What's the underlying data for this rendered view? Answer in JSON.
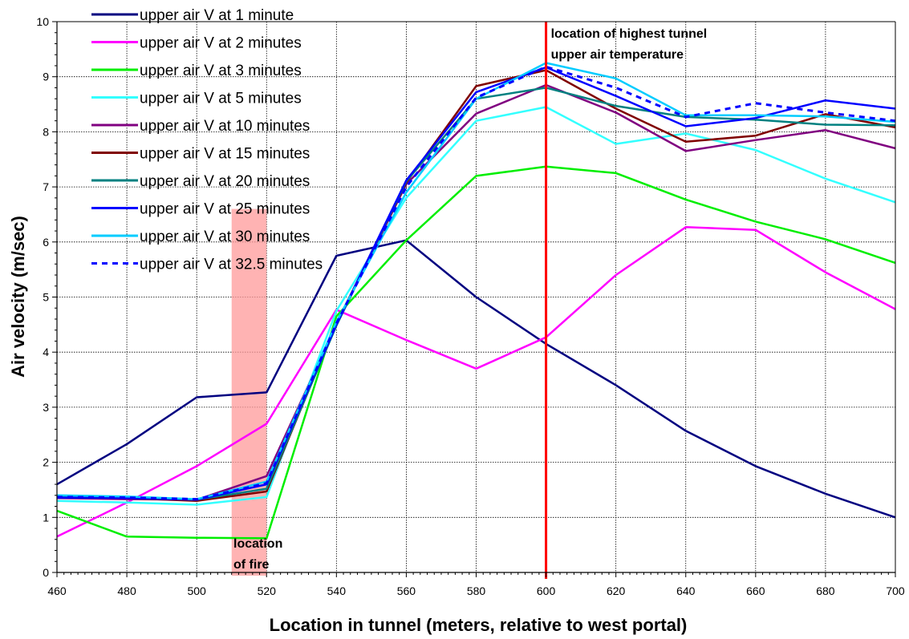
{
  "chart_data": {
    "type": "line",
    "xlabel": "Location in tunnel (meters, relative to west portal)",
    "ylabel": "Air velocity (m/sec)",
    "xlim": [
      460,
      700
    ],
    "ylim": [
      0,
      10
    ],
    "x_ticks": [
      460,
      480,
      500,
      520,
      540,
      560,
      580,
      600,
      620,
      640,
      660,
      680,
      700
    ],
    "y_ticks": [
      0,
      1,
      2,
      3,
      4,
      5,
      6,
      7,
      8,
      9,
      10
    ],
    "grid": true,
    "legend_position": "top-left",
    "x": [
      460,
      480,
      500,
      520,
      540,
      560,
      580,
      600,
      620,
      640,
      660,
      680,
      700
    ],
    "series": [
      {
        "name": "upper air V at 1 minute",
        "color": "#000080",
        "dash": false,
        "values": [
          1.6,
          2.33,
          3.18,
          3.27,
          5.75,
          6.03,
          5.0,
          4.15,
          3.4,
          2.57,
          1.93,
          1.43,
          1.0
        ]
      },
      {
        "name": "upper air V at 2 minutes",
        "color": "#ff00ff",
        "dash": false,
        "values": [
          0.65,
          1.27,
          1.93,
          2.7,
          4.77,
          4.22,
          3.7,
          4.27,
          5.4,
          6.27,
          6.22,
          5.45,
          4.78
        ]
      },
      {
        "name": "upper air V at 3 minutes",
        "color": "#00ee00",
        "dash": false,
        "values": [
          1.12,
          0.65,
          0.63,
          0.62,
          4.65,
          6.03,
          7.2,
          7.37,
          7.25,
          6.77,
          6.37,
          6.05,
          5.62
        ]
      },
      {
        "name": "upper air V at 5 minutes",
        "color": "#33ffff",
        "dash": false,
        "values": [
          1.3,
          1.27,
          1.23,
          1.37,
          4.75,
          6.8,
          8.2,
          8.45,
          7.78,
          7.97,
          7.67,
          7.15,
          6.72
        ]
      },
      {
        "name": "upper air V at 10 minutes",
        "color": "#800080",
        "dash": false,
        "values": [
          1.35,
          1.33,
          1.32,
          1.75,
          4.5,
          7.05,
          8.33,
          8.85,
          8.35,
          7.65,
          7.85,
          8.03,
          7.7
        ]
      },
      {
        "name": "upper air V at 15 minutes",
        "color": "#800000",
        "dash": false,
        "values": [
          1.37,
          1.35,
          1.3,
          1.47,
          4.52,
          7.08,
          8.83,
          9.12,
          8.42,
          7.82,
          7.93,
          8.32,
          8.08
        ]
      },
      {
        "name": "upper air V at 20 minutes",
        "color": "#008080",
        "dash": false,
        "values": [
          1.38,
          1.36,
          1.32,
          1.52,
          4.48,
          7.1,
          8.6,
          8.8,
          8.47,
          8.27,
          8.22,
          8.13,
          8.12
        ]
      },
      {
        "name": "upper air V at 25 minutes",
        "color": "#0000ff",
        "dash": false,
        "values": [
          1.36,
          1.35,
          1.32,
          1.6,
          4.5,
          7.12,
          8.72,
          9.17,
          8.65,
          8.1,
          8.25,
          8.57,
          8.42
        ]
      },
      {
        "name": "upper air V at 30 minutes",
        "color": "#00ccff",
        "dash": false,
        "values": [
          1.4,
          1.38,
          1.33,
          1.65,
          4.55,
          6.9,
          8.6,
          9.25,
          8.97,
          8.3,
          8.3,
          8.28,
          8.18
        ]
      },
      {
        "name": "upper air V at 32.5 minutes",
        "color": "#0000ff",
        "dash": true,
        "values": [
          1.37,
          1.36,
          1.33,
          1.62,
          4.52,
          7.0,
          8.62,
          9.18,
          8.8,
          8.27,
          8.52,
          8.35,
          8.2
        ]
      }
    ],
    "annotations": [
      {
        "text_lines": [
          "location of highest tunnel",
          "upper air temperature"
        ],
        "x": 600,
        "y_line_top": 10,
        "color": "#ff0000"
      },
      {
        "text_lines": [
          "location",
          "of fire"
        ],
        "band_x": [
          510,
          520
        ],
        "color": "#ff9999"
      }
    ],
    "plot_background": "#ffffff",
    "grid_color": "#000000"
  }
}
